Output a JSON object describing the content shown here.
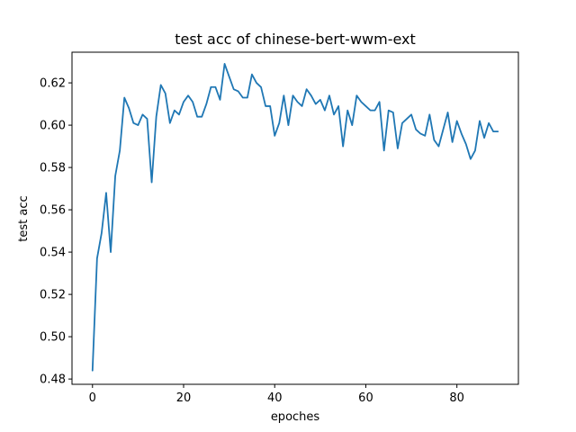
{
  "chart_data": {
    "type": "line",
    "title": "test acc of chinese-bert-wwm-ext",
    "xlabel": "epoches",
    "ylabel": "test acc",
    "xlim": [
      -4.5,
      93.5
    ],
    "ylim": [
      0.4775,
      0.6345
    ],
    "xticks": [
      0,
      20,
      40,
      60,
      80
    ],
    "yticks": [
      0.48,
      0.5,
      0.52,
      0.54,
      0.56,
      0.58,
      0.6,
      0.62
    ],
    "ytick_labels": [
      "0.48",
      "0.50",
      "0.52",
      "0.54",
      "0.56",
      "0.58",
      "0.60",
      "0.62"
    ],
    "grid": false,
    "series": [
      {
        "color": "#1f77b4",
        "x": [
          0,
          1,
          2,
          3,
          4,
          5,
          6,
          7,
          8,
          9,
          10,
          11,
          12,
          13,
          14,
          15,
          16,
          17,
          18,
          19,
          20,
          21,
          22,
          23,
          24,
          25,
          26,
          27,
          28,
          29,
          30,
          31,
          32,
          33,
          34,
          35,
          36,
          37,
          38,
          39,
          40,
          41,
          42,
          43,
          44,
          45,
          46,
          47,
          48,
          49,
          50,
          51,
          52,
          53,
          54,
          55,
          56,
          57,
          58,
          59,
          60,
          61,
          62,
          63,
          64,
          65,
          66,
          67,
          68,
          69,
          70,
          71,
          72,
          73,
          74,
          75,
          76,
          77,
          78,
          79,
          80,
          81,
          82,
          83,
          84,
          85,
          86,
          87,
          88,
          89
        ],
        "values": [
          0.484,
          0.537,
          0.549,
          0.568,
          0.54,
          0.576,
          0.588,
          0.613,
          0.608,
          0.601,
          0.6,
          0.605,
          0.603,
          0.573,
          0.604,
          0.619,
          0.615,
          0.601,
          0.607,
          0.605,
          0.611,
          0.614,
          0.611,
          0.604,
          0.604,
          0.61,
          0.618,
          0.618,
          0.612,
          0.629,
          0.623,
          0.617,
          0.616,
          0.613,
          0.613,
          0.624,
          0.62,
          0.618,
          0.609,
          0.609,
          0.595,
          0.601,
          0.614,
          0.6,
          0.614,
          0.611,
          0.609,
          0.617,
          0.614,
          0.61,
          0.612,
          0.607,
          0.614,
          0.605,
          0.609,
          0.59,
          0.607,
          0.6,
          0.614,
          0.611,
          0.609,
          0.607,
          0.607,
          0.611,
          0.588,
          0.607,
          0.606,
          0.589,
          0.601,
          0.603,
          0.605,
          0.598,
          0.596,
          0.595,
          0.605,
          0.593,
          0.59,
          0.598,
          0.606,
          0.592,
          0.602,
          0.596,
          0.591,
          0.584,
          0.588,
          0.602,
          0.594,
          0.601,
          0.597,
          0.597
        ]
      }
    ]
  }
}
